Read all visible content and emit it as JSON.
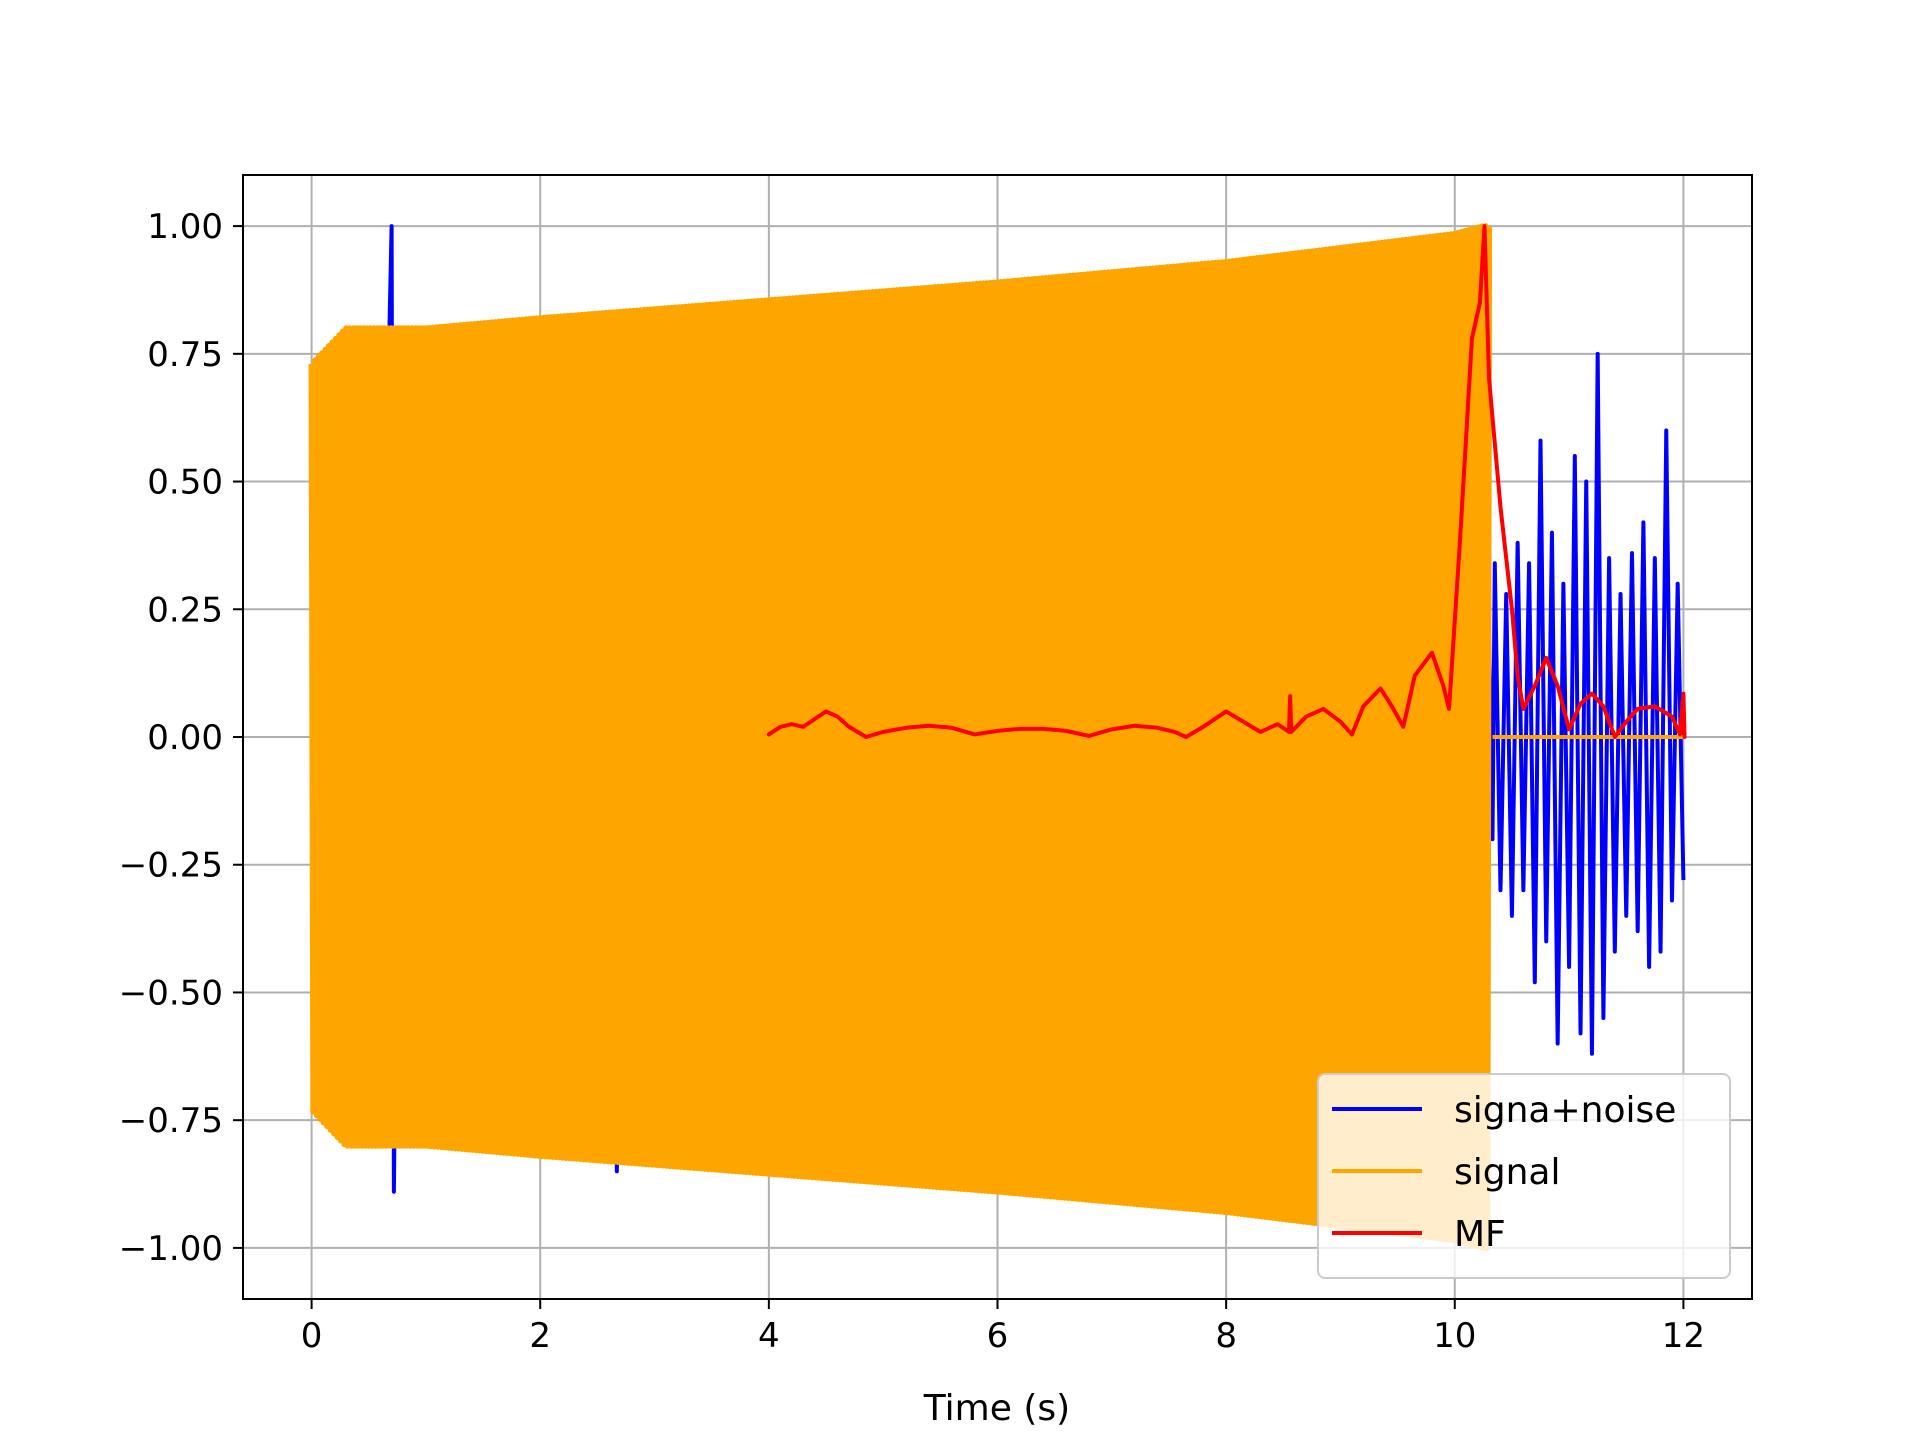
{
  "chart_data": {
    "type": "line",
    "title": "",
    "xlabel": "Time (s)",
    "ylabel": "",
    "xlim": [
      -0.6,
      12.6
    ],
    "ylim": [
      -1.1,
      1.1
    ],
    "grid": true,
    "legend_position": "lower-right",
    "x_ticks": [
      0,
      2,
      4,
      6,
      8,
      10,
      12
    ],
    "x_tick_labels": [
      "0",
      "2",
      "4",
      "6",
      "8",
      "10",
      "12"
    ],
    "y_ticks": [
      -1.0,
      -0.75,
      -0.5,
      -0.25,
      0.0,
      0.25,
      0.5,
      0.75,
      1.0
    ],
    "y_tick_labels": [
      "−1.00",
      "−0.75",
      "−0.50",
      "−0.25",
      "0.00",
      "0.25",
      "0.50",
      "0.75",
      "1.00"
    ],
    "series": [
      {
        "name": "signa+noise",
        "color": "#0000ff",
        "points": [
          [
            0.0,
            0.18
          ],
          [
            0.05,
            -0.15
          ],
          [
            0.1,
            0.38
          ],
          [
            0.15,
            -0.62
          ],
          [
            0.2,
            0.52
          ],
          [
            0.3,
            -0.45
          ],
          [
            0.4,
            0.48
          ],
          [
            0.5,
            -0.47
          ],
          [
            0.55,
            0.56
          ],
          [
            0.6,
            -0.6
          ],
          [
            0.65,
            0.47
          ],
          [
            0.7,
            1.0
          ],
          [
            0.72,
            -0.89
          ],
          [
            0.78,
            0.55
          ],
          [
            0.85,
            -0.72
          ],
          [
            0.9,
            0.62
          ],
          [
            0.95,
            -0.68
          ],
          [
            1.0,
            0.58
          ],
          [
            1.1,
            -0.66
          ],
          [
            1.2,
            0.52
          ],
          [
            1.3,
            -0.64
          ],
          [
            1.5,
            0.5
          ],
          [
            1.8,
            -0.55
          ],
          [
            2.0,
            0.48
          ],
          [
            2.3,
            -0.58
          ],
          [
            2.5,
            0.45
          ],
          [
            2.65,
            0.62
          ],
          [
            2.67,
            -0.85
          ],
          [
            2.8,
            0.5
          ],
          [
            3.2,
            -0.55
          ],
          [
            3.6,
            0.52
          ],
          [
            4.0,
            -0.52
          ],
          [
            4.5,
            0.55
          ],
          [
            5.0,
            -0.55
          ],
          [
            5.5,
            0.56
          ],
          [
            6.0,
            -0.58
          ],
          [
            6.5,
            0.6
          ],
          [
            7.0,
            -0.6
          ],
          [
            7.5,
            0.62
          ],
          [
            8.0,
            -0.62
          ],
          [
            8.5,
            0.66
          ],
          [
            9.0,
            -0.68
          ],
          [
            9.5,
            0.7
          ],
          [
            10.0,
            -0.72
          ],
          [
            10.3,
            0.2
          ],
          [
            10.33,
            -0.2
          ],
          [
            10.35,
            0.34
          ],
          [
            10.4,
            -0.3
          ],
          [
            10.45,
            0.28
          ],
          [
            10.5,
            -0.35
          ],
          [
            10.55,
            0.38
          ],
          [
            10.6,
            -0.3
          ],
          [
            10.65,
            0.34
          ],
          [
            10.7,
            -0.48
          ],
          [
            10.75,
            0.58
          ],
          [
            10.8,
            -0.4
          ],
          [
            10.85,
            0.4
          ],
          [
            10.9,
            -0.6
          ],
          [
            10.95,
            0.3
          ],
          [
            11.0,
            -0.45
          ],
          [
            11.05,
            0.55
          ],
          [
            11.1,
            -0.58
          ],
          [
            11.15,
            0.5
          ],
          [
            11.2,
            -0.62
          ],
          [
            11.25,
            0.75
          ],
          [
            11.3,
            -0.55
          ],
          [
            11.35,
            0.35
          ],
          [
            11.4,
            -0.42
          ],
          [
            11.45,
            0.28
          ],
          [
            11.5,
            -0.35
          ],
          [
            11.55,
            0.36
          ],
          [
            11.6,
            -0.38
          ],
          [
            11.65,
            0.42
          ],
          [
            11.7,
            -0.45
          ],
          [
            11.75,
            0.35
          ],
          [
            11.8,
            -0.42
          ],
          [
            11.85,
            0.6
          ],
          [
            11.9,
            -0.32
          ],
          [
            11.95,
            0.3
          ],
          [
            12.0,
            -0.28
          ]
        ]
      },
      {
        "name": "signal",
        "color": "#ffa500",
        "points": [
          [
            0.0,
            0.73
          ],
          [
            0.0,
            -0.79
          ],
          [
            0.3,
            0.8
          ],
          [
            0.3,
            -0.8
          ],
          [
            1.0,
            0.8
          ],
          [
            1.0,
            -0.8
          ],
          [
            2.0,
            0.82
          ],
          [
            2.0,
            -0.82
          ],
          [
            4.0,
            0.855
          ],
          [
            4.0,
            -0.855
          ],
          [
            6.0,
            0.89
          ],
          [
            6.0,
            -0.89
          ],
          [
            8.0,
            0.93
          ],
          [
            8.0,
            -0.93
          ],
          [
            10.0,
            0.985
          ],
          [
            10.0,
            -0.985
          ],
          [
            10.25,
            1.0
          ],
          [
            10.33,
            -0.6
          ],
          [
            10.33,
            0.0
          ],
          [
            12.0,
            0.0
          ]
        ]
      },
      {
        "name": "MF",
        "color": "#ff0000",
        "points": [
          [
            4.0,
            0.005
          ],
          [
            4.1,
            0.02
          ],
          [
            4.2,
            0.025
          ],
          [
            4.3,
            0.02
          ],
          [
            4.4,
            0.035
          ],
          [
            4.5,
            0.05
          ],
          [
            4.6,
            0.04
          ],
          [
            4.7,
            0.02
          ],
          [
            4.85,
            0.0
          ],
          [
            5.0,
            0.01
          ],
          [
            5.2,
            0.018
          ],
          [
            5.4,
            0.022
          ],
          [
            5.6,
            0.018
          ],
          [
            5.8,
            0.005
          ],
          [
            6.0,
            0.012
          ],
          [
            6.2,
            0.016
          ],
          [
            6.4,
            0.016
          ],
          [
            6.6,
            0.012
          ],
          [
            6.8,
            0.002
          ],
          [
            7.0,
            0.015
          ],
          [
            7.2,
            0.022
          ],
          [
            7.4,
            0.018
          ],
          [
            7.55,
            0.01
          ],
          [
            7.65,
            0.0
          ],
          [
            7.8,
            0.02
          ],
          [
            8.0,
            0.05
          ],
          [
            8.15,
            0.03
          ],
          [
            8.3,
            0.01
          ],
          [
            8.45,
            0.025
          ],
          [
            8.55,
            0.01
          ],
          [
            8.56,
            0.08
          ],
          [
            8.57,
            0.01
          ],
          [
            8.7,
            0.04
          ],
          [
            8.85,
            0.055
          ],
          [
            9.0,
            0.03
          ],
          [
            9.1,
            0.005
          ],
          [
            9.2,
            0.06
          ],
          [
            9.35,
            0.095
          ],
          [
            9.45,
            0.06
          ],
          [
            9.55,
            0.02
          ],
          [
            9.65,
            0.12
          ],
          [
            9.8,
            0.165
          ],
          [
            9.9,
            0.1
          ],
          [
            9.95,
            0.055
          ],
          [
            10.05,
            0.4
          ],
          [
            10.15,
            0.78
          ],
          [
            10.22,
            0.85
          ],
          [
            10.26,
            1.0
          ],
          [
            10.3,
            0.7
          ],
          [
            10.4,
            0.45
          ],
          [
            10.5,
            0.25
          ],
          [
            10.55,
            0.12
          ],
          [
            10.6,
            0.055
          ],
          [
            10.7,
            0.1
          ],
          [
            10.8,
            0.155
          ],
          [
            10.9,
            0.1
          ],
          [
            11.0,
            0.015
          ],
          [
            11.1,
            0.065
          ],
          [
            11.2,
            0.085
          ],
          [
            11.3,
            0.06
          ],
          [
            11.4,
            0.0
          ],
          [
            11.5,
            0.03
          ],
          [
            11.6,
            0.055
          ],
          [
            11.75,
            0.06
          ],
          [
            11.9,
            0.04
          ],
          [
            11.97,
            0.005
          ],
          [
            12.0,
            0.085
          ],
          [
            12.01,
            0.0
          ]
        ]
      }
    ]
  }
}
